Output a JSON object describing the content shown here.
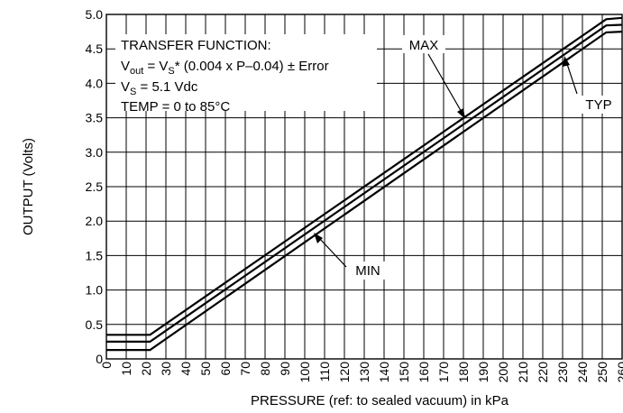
{
  "chart_data": {
    "type": "line",
    "xlabel": "PRESSURE (ref: to sealed vacuum) in kPa",
    "ylabel": "OUTPUT (Volts)",
    "xlim": [
      0,
      260
    ],
    "ylim": [
      0,
      5.0
    ],
    "x_ticks": [
      "0",
      "10",
      "20",
      "30",
      "40",
      "50",
      "60",
      "70",
      "80",
      "90",
      "100",
      "110",
      "120",
      "130",
      "140",
      "150",
      "160",
      "170",
      "180",
      "190",
      "200",
      "210",
      "220",
      "230",
      "240",
      "250",
      "260"
    ],
    "y_ticks": [
      "0",
      "0.5",
      "1.0",
      "1.5",
      "2.0",
      "2.5",
      "3.0",
      "3.5",
      "4.0",
      "4.5",
      "5.0"
    ],
    "grid": true,
    "series": [
      {
        "name": "MAX",
        "x": [
          0,
          22,
          252,
          260
        ],
        "y": [
          0.35,
          0.35,
          4.93,
          4.95
        ]
      },
      {
        "name": "TYP",
        "x": [
          0,
          22,
          252,
          260
        ],
        "y": [
          0.25,
          0.25,
          4.84,
          4.85
        ]
      },
      {
        "name": "MIN",
        "x": [
          0,
          22,
          252,
          260
        ],
        "y": [
          0.13,
          0.13,
          4.74,
          4.75
        ]
      }
    ],
    "annotations": {
      "transfer_title": "TRANSFER FUNCTION:",
      "vout_main": "V",
      "vout_sub": "out",
      "vout_eq": " = V",
      "vs_sub": "S",
      "vout_rest": "* (0.004 x P–0.04) ± Error",
      "vs_line_main": "V",
      "vs_line_sub": "S",
      "vs_line_rest": " = 5.1 Vdc",
      "temp_line": "TEMP = 0 to 85°C",
      "max_label": "MAX",
      "typ_label": "TYP",
      "min_label": "MIN"
    }
  }
}
